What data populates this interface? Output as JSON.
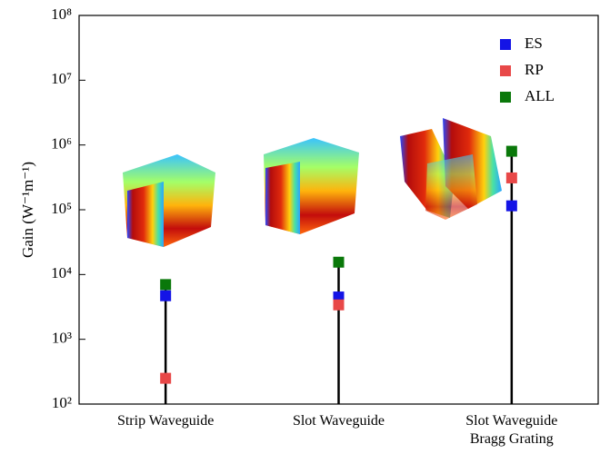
{
  "chart_data": {
    "type": "stem-scatter",
    "y_label": "Gain (W⁻¹m⁻¹)",
    "categories": [
      "Strip Waveguide",
      "Slot Waveguide",
      "Slot Waveguide\nBragg Grating"
    ],
    "series": [
      {
        "name": "ES",
        "color": "#1414e6",
        "values": [
          4700,
          4500,
          115000
        ]
      },
      {
        "name": "RP",
        "color": "#e84848",
        "values": [
          250,
          3400,
          310000
        ]
      },
      {
        "name": "ALL",
        "color": "#0a780a",
        "values": [
          7000,
          15500,
          800000
        ]
      }
    ],
    "log_scale": true,
    "ylim": [
      100,
      100000000
    ],
    "yticks": [
      {
        "value": 100,
        "label": "10²"
      },
      {
        "value": 1000,
        "label": "10³"
      },
      {
        "value": 10000,
        "label": "10⁴"
      },
      {
        "value": 100000,
        "label": "10⁵"
      },
      {
        "value": 1000000,
        "label": "10⁶"
      },
      {
        "value": 10000000,
        "label": "10⁷"
      },
      {
        "value": 100000000,
        "label": "10⁸"
      }
    ],
    "legend": "upper right"
  }
}
